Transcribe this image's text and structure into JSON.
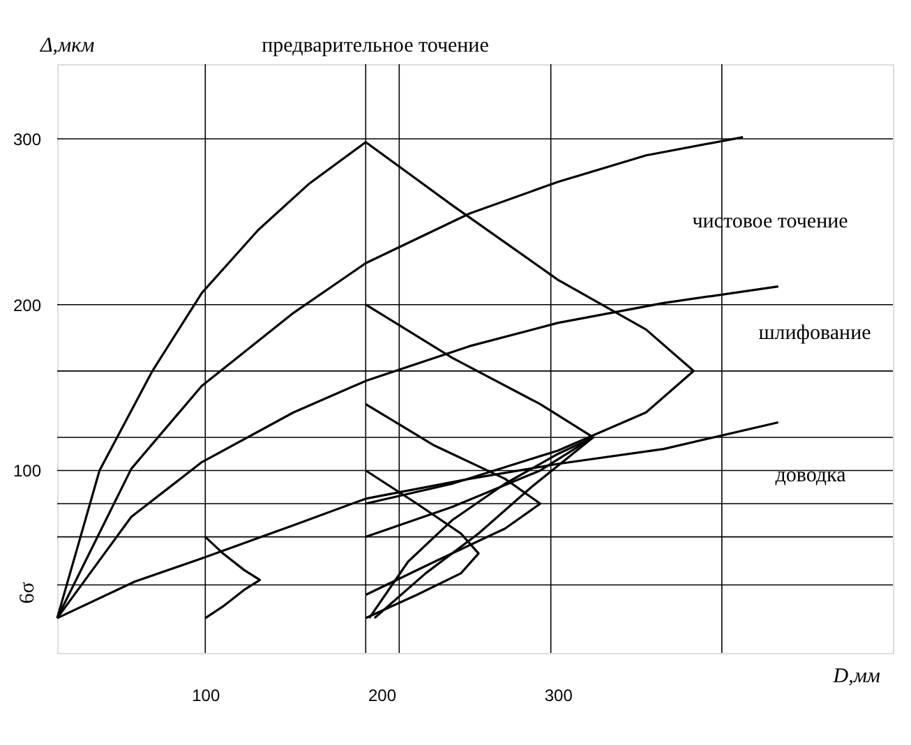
{
  "chart_data": {
    "type": "line",
    "xlabel": "D,мм",
    "ylabel": "Δ,мкм",
    "xlim": [
      16,
      490
    ],
    "ylim": [
      -10,
      345
    ],
    "xticks": [
      100,
      200,
      300
    ],
    "yticks": [
      100,
      200,
      300
    ],
    "grid": false,
    "marker": "none",
    "line_style": "solid",
    "series": [
      {
        "color": "#000000",
        "x": [
          16,
          40,
          70,
          98,
          130,
          159,
          191
        ],
        "values": [
          11,
          100,
          160,
          207,
          245,
          273,
          298
        ]
      },
      {
        "color": "#000000",
        "x": [
          16,
          58,
          98,
          150,
          191,
          250,
          300,
          350,
          405
        ],
        "values": [
          11,
          101,
          151,
          195,
          225,
          255,
          274,
          290,
          301
        ]
      },
      {
        "color": "#000000",
        "x": [
          16,
          58,
          98,
          150,
          191,
          250,
          300,
          360,
          425
        ],
        "values": [
          11,
          72,
          105,
          135,
          154,
          175,
          189,
          201,
          211
        ]
      },
      {
        "color": "#000000",
        "x": [
          16,
          60,
          98,
          150,
          191,
          250,
          300,
          360,
          425
        ],
        "values": [
          11,
          33,
          47,
          67,
          83,
          95,
          104,
          113,
          129
        ]
      },
      {
        "color": "#000000",
        "x": [
          100,
          110,
          122,
          131,
          122,
          110,
          100
        ],
        "values": [
          60,
          50,
          40,
          34,
          28,
          18,
          11
        ]
      },
      {
        "color": "#000000",
        "x": [
          191,
          240,
          300,
          350,
          377,
          350,
          300,
          240,
          191
        ],
        "values": [
          298,
          260,
          215,
          185,
          160,
          135,
          112,
          92,
          80
        ]
      },
      {
        "color": "#000000",
        "x": [
          191,
          240,
          290,
          320,
          290,
          240,
          191
        ],
        "values": [
          200,
          168,
          140,
          120,
          100,
          78,
          60
        ]
      },
      {
        "color": "#000000",
        "x": [
          191,
          230,
          270,
          290,
          270,
          230,
          191
        ],
        "values": [
          140,
          115,
          95,
          80,
          65,
          45,
          25
        ]
      },
      {
        "color": "#000000",
        "x": [
          191,
          220,
          245,
          255,
          245,
          220,
          191
        ],
        "values": [
          100,
          80,
          62,
          50,
          38,
          25,
          11
        ]
      },
      {
        "color": "#000000",
        "x": [
          193,
          215,
          240,
          270,
          300,
          320
        ],
        "values": [
          11,
          45,
          70,
          92,
          110,
          120
        ]
      },
      {
        "color": "#000000",
        "x": [
          196,
          225,
          255,
          285,
          320
        ],
        "values": [
          11,
          38,
          62,
          90,
          120
        ]
      }
    ],
    "ref_lines": [
      {
        "axis": "x",
        "value": 100,
        "color": "#000000"
      },
      {
        "axis": "x",
        "value": 191,
        "color": "#000000"
      },
      {
        "axis": "x",
        "value": 210,
        "color": "#000000"
      },
      {
        "axis": "x",
        "value": 296,
        "color": "#000000"
      },
      {
        "axis": "x",
        "value": 393,
        "color": "#000000"
      },
      {
        "axis": "y",
        "value": 300,
        "color": "#000000"
      },
      {
        "axis": "y",
        "value": 200,
        "color": "#000000"
      },
      {
        "axis": "y",
        "value": 100,
        "color": "#000000"
      },
      {
        "axis": "y",
        "value": 60,
        "color": "#000000"
      },
      {
        "axis": "y",
        "value": 160,
        "color": "#000000"
      },
      {
        "axis": "y",
        "value": 120,
        "color": "#000000"
      },
      {
        "axis": "y",
        "value": 80,
        "color": "#000000"
      },
      {
        "axis": "y",
        "value": 31,
        "color": "#000000"
      }
    ],
    "annotations": [
      "предварительное точение",
      "чистовое точение",
      "шлифование",
      "доводка",
      "6σ"
    ]
  }
}
